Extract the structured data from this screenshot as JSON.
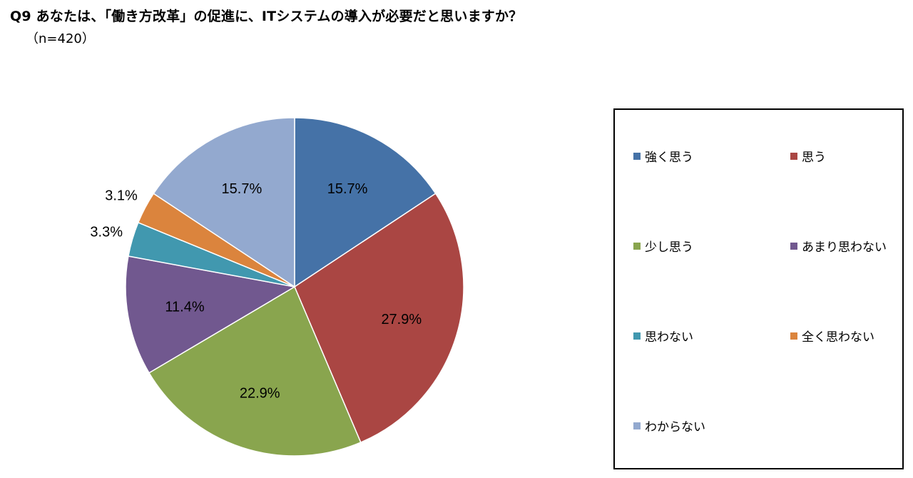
{
  "title": "Q9 あなたは、「働き方改革」の促進に、ITシステムの導入が必要だと思いますか？",
  "subtitle": "（n=420）",
  "chart_data": {
    "type": "pie",
    "title": "Q9 あなたは、「働き方改革」の促進に、ITシステムの導入が必要だと思いますか？",
    "subtitle": "（n=420）",
    "legend_position": "right",
    "slices": [
      {
        "label": "強く思う",
        "value": 15.7,
        "display": "15.7%",
        "color": "#4572A7"
      },
      {
        "label": "思う",
        "value": 27.9,
        "display": "27.9%",
        "color": "#AA4643"
      },
      {
        "label": "少し思う",
        "value": 22.9,
        "display": "22.9%",
        "color": "#89A54E"
      },
      {
        "label": "あまり思わない",
        "value": 11.4,
        "display": "11.4%",
        "color": "#71588F"
      },
      {
        "label": "思わない",
        "value": 3.3,
        "display": "3.3%",
        "color": "#4198AF"
      },
      {
        "label": "全く思わない",
        "value": 3.1,
        "display": "3.1%",
        "color": "#DB843D"
      },
      {
        "label": "わからない",
        "value": 15.7,
        "display": "15.7%",
        "color": "#93A9CF"
      }
    ]
  }
}
